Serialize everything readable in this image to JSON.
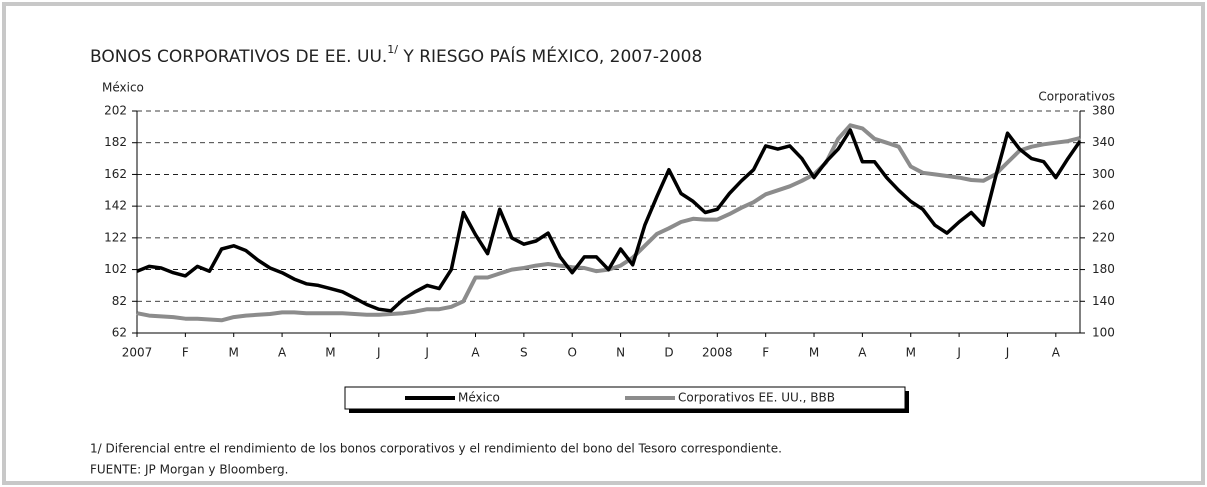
{
  "chart_data": {
    "type": "line",
    "title": [
      "BONOS CORPORATIVOS DE EE. UU.",
      "1/",
      " Y RIESGO PAÍS MÉXICO, 2007-2008"
    ],
    "ylabel": "México",
    "y2label": "Corporativos",
    "categories": [
      "2007",
      null,
      null,
      null,
      "F",
      null,
      null,
      null,
      "M",
      null,
      null,
      null,
      "A",
      null,
      null,
      null,
      "M",
      null,
      null,
      null,
      "J",
      null,
      null,
      null,
      "J",
      null,
      null,
      null,
      "A",
      null,
      null,
      null,
      "S",
      null,
      null,
      null,
      "O",
      null,
      null,
      null,
      "N",
      null,
      null,
      null,
      "D",
      null,
      null,
      null,
      "2008",
      null,
      null,
      null,
      "F",
      null,
      null,
      null,
      "M",
      null,
      null,
      null,
      "A",
      null,
      null,
      null,
      "M",
      null,
      null,
      null,
      "J",
      null,
      null,
      null,
      "J",
      null,
      null,
      null,
      "A",
      null,
      null
    ],
    "series": [
      {
        "name": "México",
        "color": "#000000",
        "values": [
          101,
          104,
          103,
          100,
          98,
          104,
          101,
          115,
          117,
          114,
          108,
          103,
          100,
          96,
          93,
          92,
          90,
          88,
          84,
          80,
          77,
          76,
          83,
          88,
          92,
          90,
          102,
          138,
          124,
          112,
          140,
          122,
          118,
          120,
          125,
          110,
          100,
          110,
          110,
          102,
          115,
          105,
          130,
          148,
          165,
          150,
          145,
          138,
          140,
          150,
          158,
          165,
          180,
          178,
          180,
          172,
          160,
          170,
          178,
          190,
          170,
          170,
          160,
          152,
          145,
          140,
          130,
          125,
          132,
          138,
          130,
          160,
          188,
          178,
          172,
          170,
          160,
          172,
          183
        ]
      },
      {
        "name": "Corporativos EE. UU., BBB",
        "color": "#8c8c8c",
        "axis": "y2",
        "values": [
          125,
          122,
          121,
          120,
          118,
          118,
          117,
          116,
          120,
          122,
          123,
          124,
          126,
          126,
          125,
          125,
          125,
          125,
          124,
          123,
          123,
          124,
          125,
          127,
          130,
          130,
          133,
          140,
          170,
          170,
          175,
          180,
          182,
          185,
          187,
          185,
          183,
          182,
          178,
          180,
          185,
          195,
          210,
          225,
          232,
          240,
          244,
          243,
          243,
          250,
          258,
          265,
          275,
          280,
          285,
          292,
          300,
          315,
          345,
          362,
          358,
          345,
          340,
          335,
          310,
          302,
          300,
          298,
          296,
          293,
          292,
          300,
          315,
          330,
          335,
          338,
          340,
          342,
          346
        ]
      }
    ],
    "ylim": [
      62,
      202
    ],
    "yticks": [
      62,
      82,
      102,
      122,
      142,
      162,
      182,
      202
    ],
    "y2lim": [
      100,
      380
    ],
    "y2ticks": [
      100,
      140,
      180,
      220,
      260,
      300,
      340,
      380
    ],
    "grid": true,
    "legend": "bottom",
    "footnote": "1/ Diferencial entre el rendimiento de los bonos corporativos y el rendimiento del bono del Tesoro correspondiente.",
    "source": "FUENTE: JP Morgan y Bloomberg."
  }
}
